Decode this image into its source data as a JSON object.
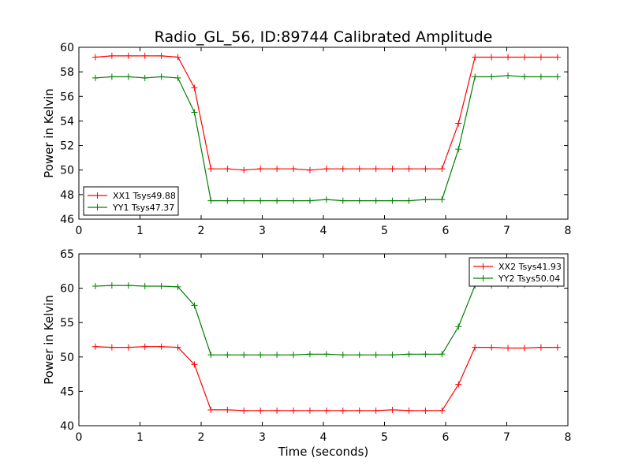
{
  "figure": {
    "title": "Radio_GL_56, ID:89744 Calibrated Amplitude"
  },
  "chart_data": [
    {
      "type": "line",
      "title": "Radio_GL_56, ID:89744 Calibrated Amplitude",
      "xlabel": "",
      "ylabel": "Power in Kelvin",
      "xlim": [
        0,
        8
      ],
      "ylim": [
        46,
        60
      ],
      "xticks": [
        0,
        1,
        2,
        3,
        4,
        5,
        6,
        7,
        8
      ],
      "yticks": [
        46,
        48,
        50,
        52,
        54,
        56,
        58,
        60
      ],
      "grid": false,
      "legend_position": "bottom-left",
      "x": [
        0.27,
        0.54,
        0.81,
        1.08,
        1.35,
        1.62,
        1.89,
        2.16,
        2.43,
        2.7,
        2.97,
        3.24,
        3.51,
        3.78,
        4.05,
        4.32,
        4.59,
        4.86,
        5.13,
        5.4,
        5.67,
        5.94,
        6.21,
        6.48,
        6.75,
        7.02,
        7.29,
        7.56,
        7.83
      ],
      "series": [
        {
          "name": "XX1 Tsys49.88",
          "color": "#ff0000",
          "values": [
            59.2,
            59.3,
            59.3,
            59.3,
            59.3,
            59.2,
            56.7,
            50.1,
            50.1,
            50.0,
            50.1,
            50.1,
            50.1,
            50.0,
            50.1,
            50.1,
            50.1,
            50.1,
            50.1,
            50.1,
            50.1,
            50.1,
            53.8,
            59.2,
            59.2,
            59.2,
            59.2,
            59.2,
            59.2
          ]
        },
        {
          "name": "YY1 Tsys47.37",
          "color": "#008000",
          "values": [
            57.5,
            57.6,
            57.6,
            57.5,
            57.6,
            57.5,
            54.7,
            47.5,
            47.5,
            47.5,
            47.5,
            47.5,
            47.5,
            47.5,
            47.6,
            47.5,
            47.5,
            47.5,
            47.5,
            47.5,
            47.6,
            47.6,
            51.7,
            57.6,
            57.6,
            57.7,
            57.6,
            57.6,
            57.6
          ]
        }
      ]
    },
    {
      "type": "line",
      "title": "",
      "xlabel": "Time (seconds)",
      "ylabel": "Power in Kelvin",
      "xlim": [
        0,
        8
      ],
      "ylim": [
        40,
        65
      ],
      "xticks": [
        0,
        1,
        2,
        3,
        4,
        5,
        6,
        7,
        8
      ],
      "yticks": [
        40,
        45,
        50,
        55,
        60,
        65
      ],
      "grid": false,
      "legend_position": "top-right",
      "x": [
        0.27,
        0.54,
        0.81,
        1.08,
        1.35,
        1.62,
        1.89,
        2.16,
        2.43,
        2.7,
        2.97,
        3.24,
        3.51,
        3.78,
        4.05,
        4.32,
        4.59,
        4.86,
        5.13,
        5.4,
        5.67,
        5.94,
        6.21,
        6.48,
        6.75,
        7.02,
        7.29,
        7.56,
        7.83
      ],
      "series": [
        {
          "name": "XX2 Tsys41.93",
          "color": "#ff0000",
          "values": [
            51.5,
            51.4,
            51.4,
            51.5,
            51.5,
            51.4,
            48.9,
            42.3,
            42.3,
            42.2,
            42.2,
            42.2,
            42.2,
            42.2,
            42.2,
            42.2,
            42.2,
            42.2,
            42.3,
            42.2,
            42.2,
            42.2,
            46.0,
            51.4,
            51.4,
            51.3,
            51.3,
            51.4,
            51.4
          ]
        },
        {
          "name": "YY2 Tsys50.04",
          "color": "#008000",
          "values": [
            60.3,
            60.4,
            60.4,
            60.3,
            60.3,
            60.2,
            57.5,
            50.3,
            50.3,
            50.3,
            50.3,
            50.3,
            50.3,
            50.4,
            50.4,
            50.3,
            50.3,
            50.3,
            50.3,
            50.4,
            50.4,
            50.4,
            54.4,
            60.4,
            60.4,
            60.4,
            60.5,
            60.5,
            60.5
          ]
        }
      ]
    }
  ]
}
